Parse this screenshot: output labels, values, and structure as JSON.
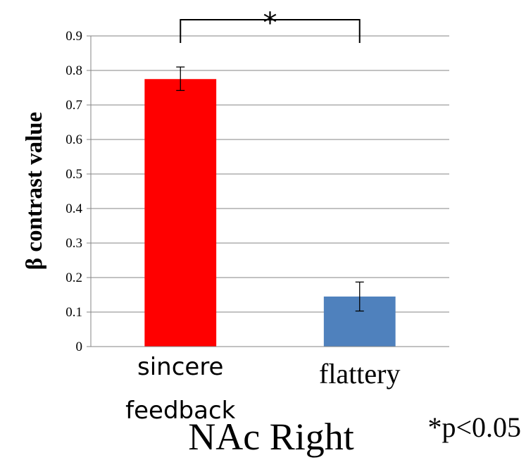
{
  "chart_data": {
    "type": "bar",
    "title": "NAc Right",
    "ylabel": "β contrast value",
    "xlabel": "",
    "categories": [
      "sincere feedback",
      "flattery"
    ],
    "category_lines": [
      [
        "sincere",
        "feedback"
      ],
      [
        "flattery"
      ]
    ],
    "values": [
      0.775,
      0.145
    ],
    "error_low": [
      0.742,
      0.103
    ],
    "error_high": [
      0.81,
      0.187
    ],
    "colors": [
      "#ff0000",
      "#4f81bd"
    ],
    "ylim": [
      0,
      0.9
    ],
    "yticks": [
      "0",
      "0.1",
      "0.2",
      "0.3",
      "0.4",
      "0.5",
      "0.6",
      "0.7",
      "0.8",
      "0.9"
    ],
    "grid": true,
    "significance": {
      "between": [
        0,
        1
      ],
      "marker": "*"
    },
    "annotation": "*p<0.05"
  }
}
